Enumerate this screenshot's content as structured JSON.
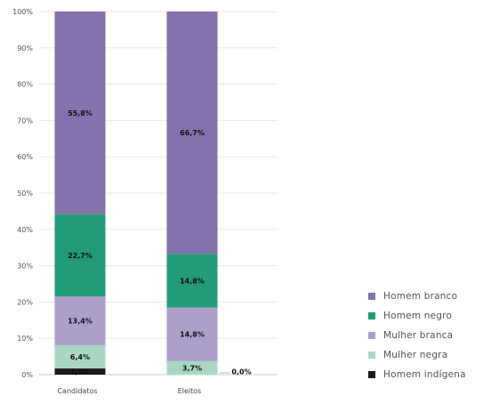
{
  "chart_data": {
    "type": "bar",
    "stacked": true,
    "categories": [
      "Candidatos",
      "Eleitos"
    ],
    "series": [
      {
        "name": "Homem indígena",
        "color": "#1a1a1a",
        "values": [
          1.7,
          0.0
        ],
        "labels": [
          "1,7%",
          "0,0%"
        ]
      },
      {
        "name": "Mulher negra",
        "color": "#a8d8c4",
        "values": [
          6.4,
          3.7
        ],
        "labels": [
          "6,4%",
          "3,7%"
        ]
      },
      {
        "name": "Mulher branca",
        "color": "#ad9fcb",
        "values": [
          13.4,
          14.8
        ],
        "labels": [
          "13,4%",
          "14,8%"
        ]
      },
      {
        "name": "Homem negro",
        "color": "#229c78",
        "values": [
          22.7,
          14.8
        ],
        "labels": [
          "22,7%",
          "14,8%"
        ]
      },
      {
        "name": "Homem branco",
        "color": "#8571ab",
        "values": [
          55.8,
          66.7
        ],
        "labels": [
          "55,8%",
          "66,7%"
        ]
      }
    ],
    "ylim": [
      0,
      100
    ],
    "yticks": [
      "0%",
      "10%",
      "20%",
      "30%",
      "40%",
      "50%",
      "60%",
      "70%",
      "80%",
      "90%",
      "100%"
    ],
    "grid": true,
    "legend_position": "right",
    "legend_order": [
      "Homem branco",
      "Homem negro",
      "Mulher branca",
      "Mulher negra",
      "Homem indígena"
    ]
  }
}
